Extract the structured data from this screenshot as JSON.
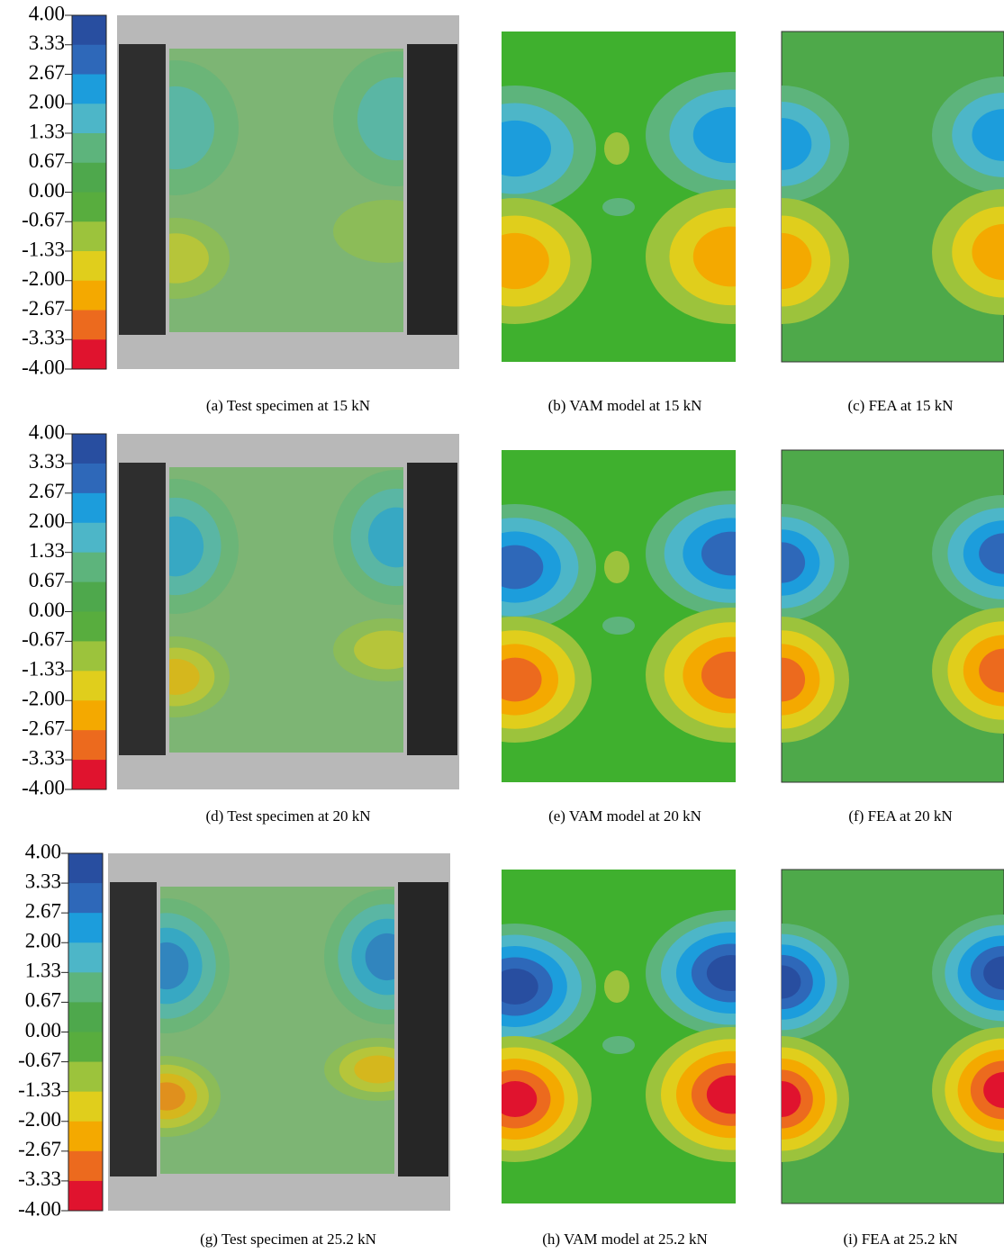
{
  "colorbar_colors": [
    "#284ea0",
    "#2e68b9",
    "#1c9ddc",
    "#4db6c8",
    "#5db47c",
    "#4ea84c",
    "#58ad3e",
    "#9cc33c",
    "#e0ce1c",
    "#f4a900",
    "#ec6a1e",
    "#e0132e"
  ],
  "rows": [
    {
      "colorbar": {
        "labels": [
          "4.00",
          "3.33",
          "2.67",
          "2.00",
          "1.33",
          "0.67",
          "0.00",
          "-0.67",
          "-1.33",
          "-2.00",
          "-2.67",
          "-3.33",
          "-4.00"
        ]
      },
      "captions": [
        "(a) Test specimen at 15 kN",
        "(b) VAM model at 15 kN",
        "(c) FEA at 15 kN"
      ]
    },
    {
      "colorbar": {
        "labels": [
          "4.00",
          "3.33",
          "2.67",
          "2.00",
          "1.33",
          "0.67",
          "0.00",
          "-0.67",
          "-1.33",
          "-2.00",
          "-2.67",
          "-3.33",
          "-4.00"
        ]
      },
      "captions": [
        "(d) Test specimen at 20 kN",
        "(e) VAM model at 20 kN",
        "(f) FEA at 20 kN"
      ]
    },
    {
      "colorbar": {
        "labels": [
          "4.00",
          "3.33",
          "2.67",
          "2.00",
          "1.33",
          "0.67",
          "0.00",
          "-0.67",
          "-1.33",
          "-2.00",
          "-2.67",
          "-3.33",
          "-4.00"
        ]
      },
      "captions": [
        "(g) Test specimen at 25.2 kN",
        "(h) VAM model at 25.2 kN",
        "(i) FEA at 25.2 kN"
      ]
    }
  ]
}
